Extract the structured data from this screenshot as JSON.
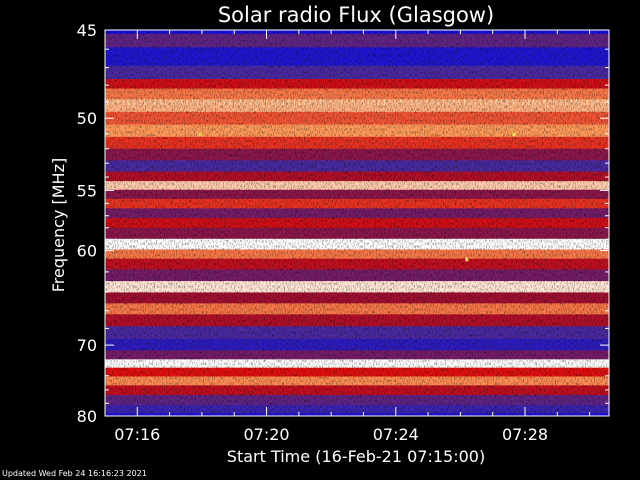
{
  "chart_data": {
    "type": "heatmap",
    "title": "Solar radio Flux (Glasgow)",
    "xlabel": "Start Time (16-Feb-21 07:15:00)",
    "ylabel": "Frequency [MHz]",
    "x_range_minutes": [
      0,
      15.6
    ],
    "x_start": "07:15:00",
    "x_ticks": [
      "07:16",
      "07:20",
      "07:24",
      "07:28"
    ],
    "x_tick_minutes": [
      1,
      5,
      9,
      13
    ],
    "ylim": [
      45,
      80
    ],
    "y_axis": "reciprocal",
    "y_ticks": [
      45,
      50,
      55,
      60,
      70,
      80
    ],
    "y_minor_ticks": [
      46,
      47,
      48,
      49,
      51,
      52,
      53,
      54,
      56,
      57,
      58,
      59,
      62,
      64,
      66,
      68,
      72,
      74,
      76,
      78
    ],
    "colormap": [
      "#1010e0",
      "#4a2aa0",
      "#a01030",
      "#e01010",
      "#ff9a5a",
      "#ffffff"
    ],
    "bands": [
      {
        "f": 45.4,
        "level": 0.25
      },
      {
        "f": 46.4,
        "level": 0.05
      },
      {
        "f": 47.4,
        "level": 0.2
      },
      {
        "f": 47.9,
        "level": 0.55
      },
      {
        "f": 48.5,
        "level": 0.75
      },
      {
        "f": 49.2,
        "level": 0.85
      },
      {
        "f": 50.0,
        "level": 0.7
      },
      {
        "f": 50.8,
        "level": 0.8
      },
      {
        "f": 51.6,
        "level": 0.65
      },
      {
        "f": 52.4,
        "level": 0.35
      },
      {
        "f": 53.2,
        "level": 0.2
      },
      {
        "f": 54.0,
        "level": 0.45
      },
      {
        "f": 54.6,
        "level": 0.9
      },
      {
        "f": 55.3,
        "level": 0.35
      },
      {
        "f": 56.0,
        "level": 0.65
      },
      {
        "f": 56.8,
        "level": 0.3
      },
      {
        "f": 57.6,
        "level": 0.55
      },
      {
        "f": 58.4,
        "level": 0.35
      },
      {
        "f": 59.5,
        "level": 1.0
      },
      {
        "f": 60.3,
        "level": 0.75
      },
      {
        "f": 61.2,
        "level": 0.5
      },
      {
        "f": 62.3,
        "level": 0.3
      },
      {
        "f": 63.5,
        "level": 0.95
      },
      {
        "f": 64.6,
        "level": 0.4
      },
      {
        "f": 65.8,
        "level": 0.75
      },
      {
        "f": 67.0,
        "level": 0.45
      },
      {
        "f": 68.5,
        "level": 0.2
      },
      {
        "f": 70.0,
        "level": 0.1
      },
      {
        "f": 71.3,
        "level": 0.3
      },
      {
        "f": 72.3,
        "level": 1.0
      },
      {
        "f": 73.5,
        "level": 0.6
      },
      {
        "f": 74.7,
        "level": 0.78
      },
      {
        "f": 76.0,
        "level": 0.5
      },
      {
        "f": 77.5,
        "level": 0.25
      },
      {
        "f": 79.0,
        "level": 0.15
      }
    ],
    "spots": [
      {
        "t": 2.95,
        "f": 51.0
      },
      {
        "t": 12.65,
        "f": 51.0
      },
      {
        "t": 11.2,
        "f": 60.8
      }
    ],
    "spike_row_f": 49.0
  },
  "footer": "Updated Wed Feb 24 16:16:23 2021"
}
